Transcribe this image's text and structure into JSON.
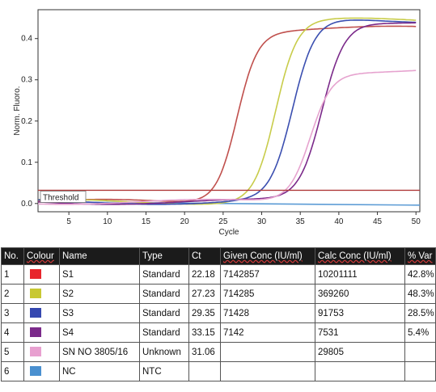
{
  "chart_data": {
    "type": "line",
    "xlabel": "Cycle",
    "ylabel": "Norm. Fluoro.",
    "xlim": [
      1,
      50.5
    ],
    "ylim": [
      -0.02,
      0.47
    ],
    "x_ticks": [
      "5",
      "10",
      "15",
      "20",
      "25",
      "30",
      "35",
      "40",
      "45",
      "50"
    ],
    "y_ticks": [
      "0.0",
      "0.1",
      "0.2",
      "0.3",
      "0.4"
    ],
    "grid": false,
    "threshold": {
      "label": "Threshold",
      "value": 0.032
    },
    "series": [
      {
        "name": "S1",
        "color": "#c0504d",
        "plateau": 0.42,
        "midpoint": 26.8,
        "slope": 1.35
      },
      {
        "name": "S2",
        "color": "#c8cc4a",
        "plateau": 0.44,
        "midpoint": 31.8,
        "slope": 1.4
      },
      {
        "name": "S3",
        "color": "#3b4fb0",
        "plateau": 0.44,
        "midpoint": 34.0,
        "slope": 1.45
      },
      {
        "name": "S4",
        "color": "#7b2a8a",
        "plateau": 0.44,
        "midpoint": 37.8,
        "slope": 1.5
      },
      {
        "name": "SN NO 3805/16",
        "color": "#e6a3cf",
        "plateau": 0.32,
        "midpoint": 36.3,
        "slope": 1.4
      }
    ],
    "baseline_series": [
      {
        "name": "NC",
        "color": "#5b9bd5",
        "start": 0.004,
        "end": -0.004
      }
    ]
  },
  "table": {
    "headers": [
      "No.",
      "Colour",
      "Name",
      "Type",
      "Ct",
      "Given Conc (IU/ml)",
      "Calc Conc (IU/ml)",
      "% Var"
    ],
    "rows": [
      {
        "no": "1",
        "color": "#e8262c",
        "name": "S1",
        "type": "Standard",
        "ct": "22.18",
        "given": "7142857",
        "calc": "10201111",
        "var": "42.8%"
      },
      {
        "no": "2",
        "color": "#c8c832",
        "name": "S2",
        "type": "Standard",
        "ct": "27.23",
        "given": "714285",
        "calc": "369260",
        "var": "48.3%"
      },
      {
        "no": "3",
        "color": "#3548b0",
        "name": "S3",
        "type": "Standard",
        "ct": "29.35",
        "given": "71428",
        "calc": "91753",
        "var": "28.5%"
      },
      {
        "no": "4",
        "color": "#7b2a8a",
        "name": "S4",
        "type": "Standard",
        "ct": "33.15",
        "given": "7142",
        "calc": "7531",
        "var": "5.4%"
      },
      {
        "no": "5",
        "color": "#e8a0d0",
        "name": "SN NO 3805/16",
        "type": "Unknown",
        "ct": "31.06",
        "given": "",
        "calc": "29805",
        "var": ""
      },
      {
        "no": "6",
        "color": "#4a90d0",
        "name": "NC",
        "type": "NTC",
        "ct": "",
        "given": "",
        "calc": "",
        "var": ""
      }
    ]
  }
}
